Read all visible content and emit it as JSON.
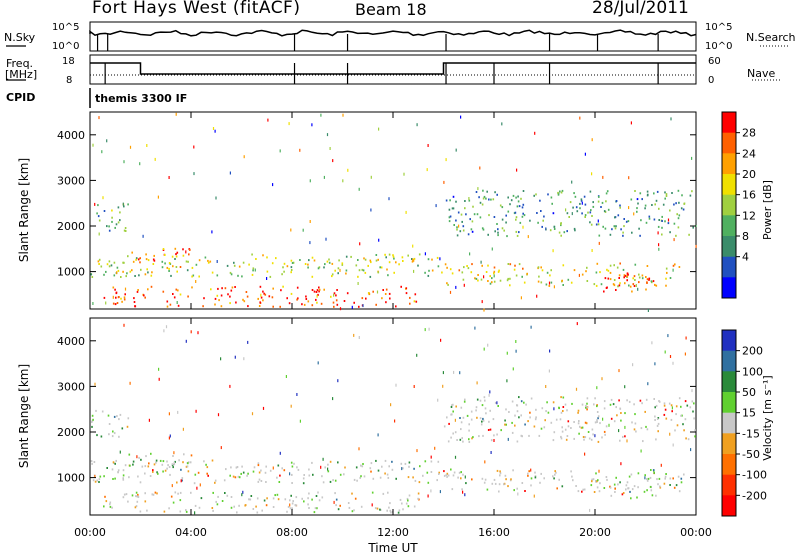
{
  "header": {
    "title": "Fort Hays West (fitACF)",
    "beam": "Beam 18",
    "date": "28/Jul/2011"
  },
  "top_panels": {
    "nsky_label": "N.Sky",
    "nsearch_label": "N.Search",
    "nsky_ticks": [
      "10^5",
      "10^0"
    ],
    "freq_label_line1": "Freq.",
    "freq_label_line2": "[MHz]",
    "freq_ticks": [
      "18",
      "8"
    ],
    "nave_label": "Nave",
    "nave_ticks": [
      "60",
      "0"
    ],
    "cpid_label": "CPID",
    "cpid_value": "themis 3300 IF"
  },
  "chart_data": [
    {
      "type": "heatmap",
      "name": "power",
      "xlabel": "Time UT",
      "ylabel": "Slant Range [km]",
      "x_ticks": [
        "00:00",
        "04:00",
        "08:00",
        "12:00",
        "16:00",
        "20:00",
        "00:00"
      ],
      "y_ticks": [
        1000,
        2000,
        3000,
        4000
      ],
      "xlim_hours": [
        0,
        24
      ],
      "ylim_km": [
        180,
        4500
      ],
      "colorbar_label": "Power [dB]",
      "colorbar_ticks": [
        28,
        24,
        20,
        16,
        12,
        8,
        4
      ],
      "colorbar_colors": [
        "#ff0000",
        "#ff6000",
        "#ffa000",
        "#f0e000",
        "#a0d040",
        "#50b060",
        "#3a8c6a",
        "#2050c0",
        "#0000ff"
      ],
      "scatter_regions": [
        {
          "t": [
            0,
            1.5
          ],
          "r": [
            1900,
            2500
          ],
          "level": 0.35
        },
        {
          "t": [
            0,
            14
          ],
          "r": [
            900,
            1400
          ],
          "level": 0.5
        },
        {
          "t": [
            1.5,
            4
          ],
          "r": [
            1100,
            1550
          ],
          "level": 0.85
        },
        {
          "t": [
            0.5,
            13
          ],
          "r": [
            250,
            700
          ],
          "level": 0.9
        },
        {
          "t": [
            14,
            23.5
          ],
          "r": [
            700,
            1200
          ],
          "level": 0.6
        },
        {
          "t": [
            20,
            22.5
          ],
          "r": [
            550,
            1000
          ],
          "level": 0.9
        },
        {
          "t": [
            14,
            24
          ],
          "r": [
            1800,
            2800
          ],
          "level": 0.3
        }
      ]
    },
    {
      "type": "heatmap",
      "name": "velocity",
      "xlabel": "Time UT",
      "ylabel": "Slant Range [km]",
      "x_ticks": [
        "00:00",
        "04:00",
        "08:00",
        "12:00",
        "16:00",
        "20:00",
        "00:00"
      ],
      "y_ticks": [
        1000,
        2000,
        3000,
        4000
      ],
      "xlim_hours": [
        0,
        24
      ],
      "ylim_km": [
        180,
        4500
      ],
      "colorbar_label": "Velocity [m s⁻¹]",
      "colorbar_ticks": [
        200,
        100,
        50,
        15,
        -15,
        -50,
        -100,
        -200
      ],
      "colorbar_colors": [
        "#2030c0",
        "#3070a0",
        "#2a8a3a",
        "#60d030",
        "#c8c8c8",
        "#f0a020",
        "#ff7000",
        "#ff3000",
        "#ff0000"
      ],
      "scatter_regions": [
        {
          "t": [
            0,
            1.5
          ],
          "r": [
            1900,
            2500
          ],
          "level": 0.4
        },
        {
          "t": [
            0,
            14
          ],
          "r": [
            900,
            1400
          ],
          "level": 0.4
        },
        {
          "t": [
            1.5,
            4
          ],
          "r": [
            1100,
            1550
          ],
          "level": 0.6
        },
        {
          "t": [
            0.5,
            13
          ],
          "r": [
            250,
            700
          ],
          "level": 0.6
        },
        {
          "t": [
            14,
            23.5
          ],
          "r": [
            700,
            1200
          ],
          "level": 0.4
        },
        {
          "t": [
            20,
            22.5
          ],
          "r": [
            550,
            1000
          ],
          "level": 0.4
        },
        {
          "t": [
            14,
            24
          ],
          "r": [
            1800,
            2800
          ],
          "level": 0.4
        }
      ]
    }
  ]
}
